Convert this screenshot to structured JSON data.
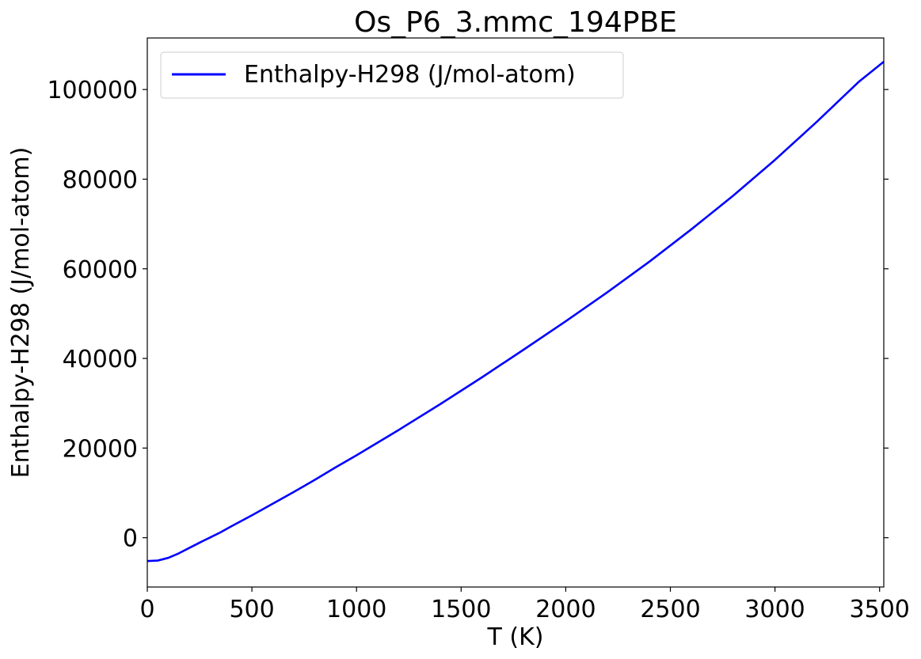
{
  "chart_data": {
    "type": "line",
    "title": "Os_P6_3.mmc_194PBE",
    "xlabel": "T (K)",
    "ylabel": "Enthalpy-H298 (J/mol-atom)",
    "xlim": [
      0,
      3520
    ],
    "ylim": [
      -11000,
      111500
    ],
    "xticks": [
      0,
      500,
      1000,
      1500,
      2000,
      2500,
      3000,
      3500
    ],
    "yticks": [
      0,
      20000,
      40000,
      60000,
      80000,
      100000
    ],
    "xtick_labels": [
      "0",
      "500",
      "1000",
      "1500",
      "2000",
      "2500",
      "3000",
      "3500"
    ],
    "ytick_labels": [
      "0",
      "20000",
      "40000",
      "60000",
      "80000",
      "100000"
    ],
    "grid": false,
    "legend_position": "top-left",
    "series": [
      {
        "name": "Enthalpy-H298 (J/mol-atom)",
        "color": "#0000ff",
        "x": [
          0,
          50,
          100,
          150,
          200,
          250,
          298,
          350,
          400,
          500,
          600,
          700,
          800,
          900,
          1000,
          1200,
          1400,
          1500,
          1600,
          1800,
          2000,
          2200,
          2400,
          2500,
          2600,
          2800,
          3000,
          3200,
          3400,
          3520
        ],
        "y": [
          -5200,
          -5100,
          -4500,
          -3500,
          -2300,
          -1100,
          0,
          1200,
          2500,
          5000,
          7600,
          10200,
          12900,
          15700,
          18400,
          24000,
          29800,
          32800,
          35800,
          42000,
          48300,
          54800,
          61600,
          65200,
          68800,
          76300,
          84300,
          92800,
          101700,
          106200
        ]
      }
    ]
  }
}
